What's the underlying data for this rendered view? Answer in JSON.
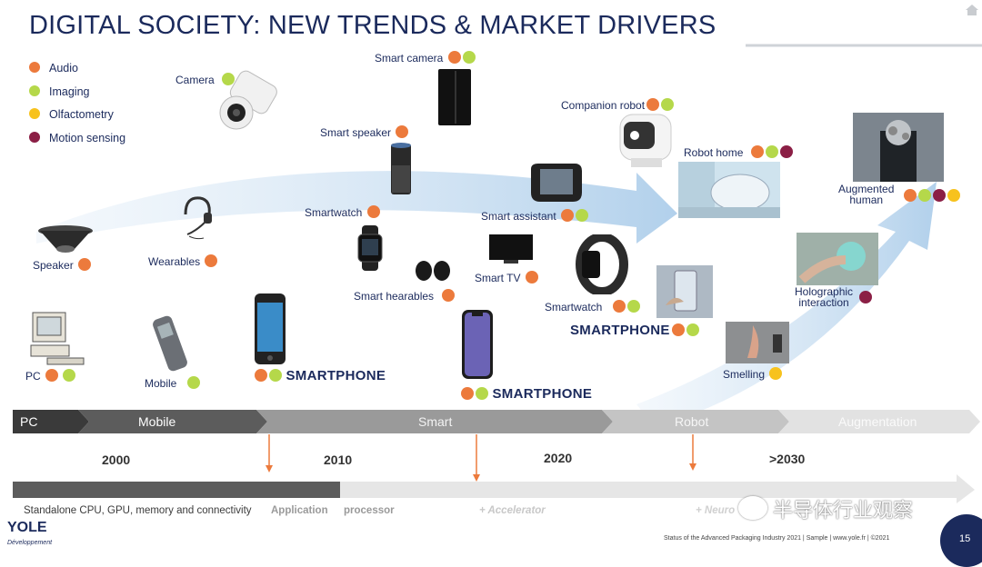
{
  "title": "DIGITAL SOCIETY: NEW TRENDS & MARKET DRIVERS",
  "colors": {
    "audio": "#ec7a3c",
    "imaging": "#b5d84a",
    "olfactometry": "#f7c21d",
    "motion": "#8b1f45",
    "navy": "#1b2a5c"
  },
  "legend": [
    {
      "label": "Audio",
      "color": "#ec7a3c"
    },
    {
      "label": "Imaging",
      "color": "#b5d84a"
    },
    {
      "label": "Olfactometry",
      "color": "#f7c21d"
    },
    {
      "label": "Motion sensing",
      "color": "#8b1f45"
    }
  ],
  "devices": {
    "pc": "PC",
    "mobile": "Mobile",
    "speaker": "Speaker",
    "wearables": "Wearables",
    "camera": "Camera",
    "smart_camera": "Smart camera",
    "smart_speaker": "Smart speaker",
    "smartwatch1": "Smartwatch",
    "smart_hearables": "Smart hearables",
    "smart_tv": "Smart TV",
    "smart_assistant": "Smart assistant",
    "smartwatch2": "Smartwatch",
    "companion_robot": "Companion robot",
    "robot_home": "Robot home",
    "holographic": "Holographic",
    "interaction": "interaction",
    "smelling": "Smelling",
    "augmented": "Augmented",
    "human": "human"
  },
  "smartphone": "SMARTPHONE",
  "stages": [
    "PC",
    "Mobile",
    "Smart",
    "Robot",
    "Augmentation"
  ],
  "years": [
    "2000",
    "2010",
    "2020",
    ">2030"
  ],
  "processors": {
    "standalone": "Standalone CPU, GPU, memory and connectivity",
    "application": "Application",
    "processor": "processor",
    "accelerator": "+ Accelerator",
    "neuro": "+ Neuro"
  },
  "watermark": "半导体行业观察",
  "footer": "Status of the Advanced Packaging Industry 2021 | Sample | www.yole.fr | ©2021",
  "page_number": "15",
  "logo": {
    "name": "YOLE",
    "sub": "Développement"
  }
}
